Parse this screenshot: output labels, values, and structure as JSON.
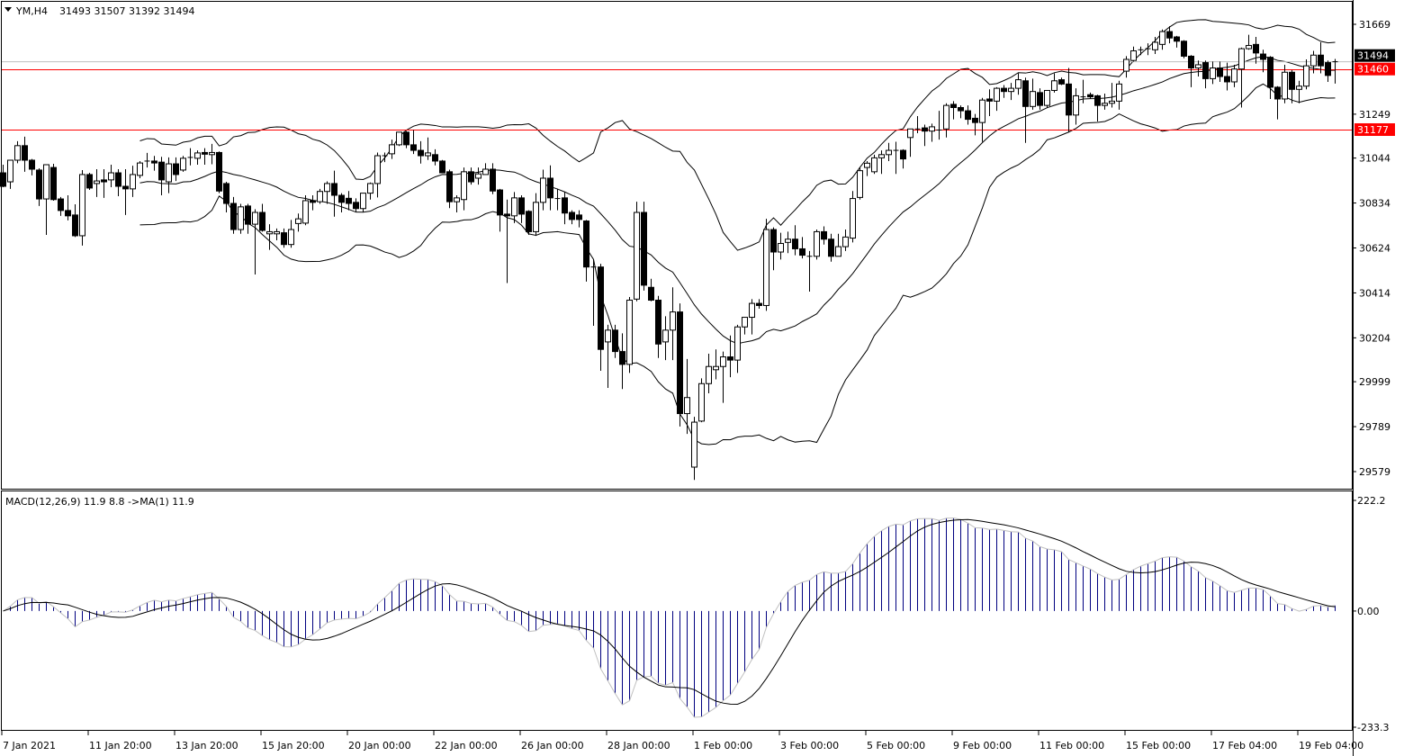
{
  "header": {
    "symbol": "YM,H4",
    "ohlc": "31493 31507 31392 31494",
    "menu_icon": "triangle-down-icon"
  },
  "macd_header": {
    "text": "MACD(12,26,9) 11.9 8.8  ->MA(1) 11.9"
  },
  "colors": {
    "background": "#ffffff",
    "candle_up": "#ffffff",
    "candle_down": "#000000",
    "hline": "#ff0000",
    "bid_line": "#c0c0c0",
    "macd_hist": "#000080",
    "macd_line": "#c0c0c0",
    "signal_line": "#000000"
  },
  "chart_data": [
    {
      "type": "candlestick",
      "title": "YM,H4",
      "ylim": [
        29579,
        31669
      ],
      "y_ticks": [
        "31669",
        "31249",
        "31044",
        "30834",
        "30624",
        "30414",
        "30204",
        "29999",
        "29789",
        "29579"
      ],
      "x_ticks": [
        "7 Jan 2021",
        "11 Jan 20:00",
        "13 Jan 20:00",
        "15 Jan 20:00",
        "20 Jan 00:00",
        "22 Jan 00:00",
        "26 Jan 00:00",
        "28 Jan 00:00",
        "1 Feb 00:00",
        "3 Feb 00:00",
        "5 Feb 00:00",
        "9 Feb 00:00",
        "11 Feb 00:00",
        "15 Feb 00:00",
        "17 Feb 04:00",
        "19 Feb 04:00"
      ],
      "x_tick_every_bars": 12,
      "bollinger": {
        "period": 20,
        "deviation": 2
      },
      "horizontal_lines": [
        {
          "price": 31460,
          "label": "31460",
          "color": "#ff0000"
        },
        {
          "price": 31177,
          "label": "31177",
          "color": "#ff0000"
        }
      ],
      "bid": {
        "price": 31494,
        "label": "31494"
      },
      "ohlc": [
        [
          30975,
          31013,
          30908,
          30912
        ],
        [
          30933,
          31034,
          30900,
          31034
        ],
        [
          31034,
          31123,
          31020,
          31102
        ],
        [
          31102,
          31144,
          30980,
          31034
        ],
        [
          31034,
          31040,
          30963,
          30992
        ],
        [
          30988,
          30996,
          30820,
          30853
        ],
        [
          30853,
          31013,
          30685,
          31013
        ],
        [
          31000,
          31017,
          30845,
          30850
        ],
        [
          30853,
          30862,
          30774,
          30799
        ],
        [
          30799,
          30870,
          30753,
          30774
        ],
        [
          30778,
          30828,
          30675,
          30681
        ],
        [
          30681,
          30988,
          30635,
          30967
        ],
        [
          30967,
          30975,
          30895,
          30904
        ],
        [
          30925,
          30992,
          30862,
          30937
        ],
        [
          30942,
          30992,
          30858,
          30933
        ],
        [
          30942,
          31013,
          30908,
          30975
        ],
        [
          30975,
          30992,
          30866,
          30912
        ],
        [
          30912,
          30992,
          30778,
          30900
        ],
        [
          30900,
          31008,
          30862,
          30967
        ],
        [
          30963,
          31030,
          30950,
          31021
        ],
        [
          31025,
          31068,
          31000,
          31030
        ],
        [
          31030,
          31054,
          30985,
          31021
        ],
        [
          31025,
          31050,
          30870,
          30942
        ],
        [
          30933,
          31047,
          30880,
          31017
        ],
        [
          31017,
          31047,
          30937,
          30967
        ],
        [
          30988,
          31054,
          30980,
          31043
        ],
        [
          31043,
          31090,
          31010,
          31047
        ],
        [
          31043,
          31080,
          31013,
          31068
        ],
        [
          31070,
          31090,
          31013,
          31062
        ],
        [
          31060,
          31110,
          31015,
          31070
        ],
        [
          31070,
          31075,
          30880,
          30890
        ],
        [
          30925,
          30933,
          30790,
          30832
        ],
        [
          30832,
          30862,
          30690,
          30710
        ],
        [
          30710,
          30830,
          30690,
          30816
        ],
        [
          30820,
          30830,
          30690,
          30735
        ],
        [
          30735,
          30805,
          30500,
          30790
        ],
        [
          30790,
          30830,
          30700,
          30706
        ],
        [
          30690,
          30735,
          30615,
          30700
        ],
        [
          30690,
          30715,
          30660,
          30700
        ],
        [
          30695,
          30715,
          30625,
          30640
        ],
        [
          30640,
          30755,
          30625,
          30710
        ],
        [
          30738,
          30785,
          30700,
          30760
        ],
        [
          30740,
          30870,
          30730,
          30845
        ],
        [
          30845,
          30870,
          30800,
          30837
        ],
        [
          30840,
          30900,
          30830,
          30888
        ],
        [
          30888,
          30935,
          30830,
          30925
        ],
        [
          30925,
          30985,
          30770,
          30870
        ],
        [
          30870,
          30880,
          30790,
          30837
        ],
        [
          30856,
          30890,
          30800,
          30832
        ],
        [
          30837,
          30856,
          30790,
          30808
        ],
        [
          30808,
          30880,
          30790,
          30880
        ],
        [
          30880,
          30930,
          30850,
          30925
        ],
        [
          30925,
          31070,
          30860,
          31055
        ],
        [
          31058,
          31070,
          31025,
          31055
        ],
        [
          31064,
          31130,
          31040,
          31106
        ],
        [
          31106,
          31165,
          31100,
          31165
        ],
        [
          31165,
          31170,
          31090,
          31106
        ],
        [
          31106,
          31175,
          31063,
          31080
        ],
        [
          31080,
          31123,
          31018,
          31055
        ],
        [
          31055,
          31140,
          31035,
          31068
        ],
        [
          31060,
          31085,
          31010,
          31030
        ],
        [
          31030,
          31035,
          30975,
          30975
        ],
        [
          30980,
          30990,
          30810,
          30840
        ],
        [
          30840,
          30870,
          30790,
          30858
        ],
        [
          30850,
          31000,
          30800,
          30980
        ],
        [
          30980,
          31000,
          30920,
          30933
        ],
        [
          30950,
          31000,
          30920,
          30970
        ],
        [
          30967,
          31020,
          30967,
          30992
        ],
        [
          30992,
          31020,
          30875,
          30890
        ],
        [
          30895,
          30900,
          30700,
          30778
        ],
        [
          30782,
          30850,
          30460,
          30774
        ],
        [
          30774,
          30885,
          30740,
          30858
        ],
        [
          30858,
          30870,
          30740,
          30782
        ],
        [
          30795,
          30800,
          30685,
          30700
        ],
        [
          30700,
          30880,
          30680,
          30837
        ],
        [
          30837,
          30990,
          30800,
          30950
        ],
        [
          30950,
          31010,
          30800,
          30858
        ],
        [
          30860,
          30900,
          30800,
          30855
        ],
        [
          30858,
          30885,
          30735,
          30787
        ],
        [
          30790,
          30800,
          30735,
          30757
        ],
        [
          30778,
          30800,
          30720,
          30757
        ],
        [
          30750,
          30755,
          30467,
          30535
        ],
        [
          30540,
          30570,
          30260,
          30535
        ],
        [
          30535,
          30550,
          30050,
          30150
        ],
        [
          30185,
          30265,
          29970,
          30240
        ],
        [
          30240,
          30265,
          30110,
          30140
        ],
        [
          30140,
          30225,
          29965,
          30080
        ],
        [
          30080,
          30395,
          30040,
          30380
        ],
        [
          30385,
          30840,
          30375,
          30790
        ],
        [
          30790,
          30840,
          30425,
          30450
        ],
        [
          30440,
          30480,
          30375,
          30380
        ],
        [
          30380,
          30400,
          30110,
          30175
        ],
        [
          30185,
          30305,
          30100,
          30240
        ],
        [
          30240,
          30440,
          30100,
          30325
        ],
        [
          30325,
          30365,
          29790,
          29850
        ],
        [
          29850,
          30105,
          29755,
          29925
        ],
        [
          29600,
          29835,
          29540,
          29810
        ],
        [
          29815,
          30015,
          29810,
          29990
        ],
        [
          29990,
          30130,
          29945,
          30070
        ],
        [
          30055,
          30150,
          30010,
          30070
        ],
        [
          30070,
          30140,
          29900,
          30115
        ],
        [
          30115,
          30215,
          30020,
          30100
        ],
        [
          30100,
          30265,
          30040,
          30255
        ],
        [
          30255,
          30300,
          30220,
          30300
        ],
        [
          30300,
          30385,
          30220,
          30365
        ],
        [
          30365,
          30385,
          30340,
          30355
        ],
        [
          30355,
          30760,
          30330,
          30710
        ],
        [
          30710,
          30720,
          30520,
          30605
        ],
        [
          30605,
          30695,
          30570,
          30645
        ],
        [
          30650,
          30700,
          30600,
          30665
        ],
        [
          30665,
          30730,
          30590,
          30620
        ],
        [
          30620,
          30675,
          30575,
          30590
        ],
        [
          30590,
          30610,
          30420,
          30585
        ],
        [
          30585,
          30710,
          30570,
          30700
        ],
        [
          30700,
          30725,
          30640,
          30665
        ],
        [
          30665,
          30690,
          30560,
          30585
        ],
        [
          30585,
          30690,
          30600,
          30630
        ],
        [
          30630,
          30710,
          30610,
          30675
        ],
        [
          30670,
          30890,
          30650,
          30855
        ],
        [
          30860,
          31000,
          30850,
          30985
        ],
        [
          31000,
          31030,
          30960,
          31020
        ],
        [
          30980,
          31060,
          30970,
          31045
        ],
        [
          31045,
          31080,
          30970,
          31060
        ],
        [
          31060,
          31115,
          31030,
          31080
        ],
        [
          31085,
          31120,
          30970,
          31080
        ],
        [
          31080,
          31085,
          30995,
          31040
        ],
        [
          31140,
          31180,
          31050,
          31180
        ],
        [
          31177,
          31240,
          31160,
          31180
        ],
        [
          31185,
          31200,
          31100,
          31170
        ],
        [
          31170,
          31205,
          31120,
          31190
        ],
        [
          31180,
          31265,
          31130,
          31175
        ],
        [
          31180,
          31300,
          31140,
          31290
        ],
        [
          31295,
          31310,
          31225,
          31280
        ],
        [
          31280,
          31290,
          31230,
          31265
        ],
        [
          31265,
          31290,
          31200,
          31225
        ],
        [
          31230,
          31250,
          31150,
          31210
        ],
        [
          31210,
          31325,
          31120,
          31315
        ],
        [
          31320,
          31365,
          31240,
          31310
        ],
        [
          31310,
          31375,
          31265,
          31370
        ],
        [
          31370,
          31385,
          31325,
          31355
        ],
        [
          31355,
          31395,
          31315,
          31370
        ],
        [
          31370,
          31440,
          31340,
          31410
        ],
        [
          31405,
          31420,
          31115,
          31285
        ],
        [
          31285,
          31415,
          31270,
          31355
        ],
        [
          31350,
          31370,
          31270,
          31290
        ],
        [
          31290,
          31360,
          31280,
          31360
        ],
        [
          31360,
          31440,
          31350,
          31405
        ],
        [
          31410,
          31420,
          31385,
          31390
        ],
        [
          31390,
          31465,
          31165,
          31245
        ],
        [
          31245,
          31370,
          31200,
          31335
        ],
        [
          31335,
          31410,
          31300,
          31330
        ],
        [
          31340,
          31350,
          31320,
          31330
        ],
        [
          31335,
          31340,
          31215,
          31290
        ],
        [
          31290,
          31345,
          31270,
          31300
        ],
        [
          31300,
          31395,
          31280,
          31310
        ],
        [
          31310,
          31405,
          31270,
          31390
        ],
        [
          31450,
          31520,
          31420,
          31505
        ],
        [
          31500,
          31565,
          31495,
          31545
        ],
        [
          31545,
          31565,
          31525,
          31550
        ],
        [
          31550,
          31580,
          31525,
          31555
        ],
        [
          31550,
          31610,
          31530,
          31585
        ],
        [
          31575,
          31645,
          31550,
          31635
        ],
        [
          31635,
          31660,
          31580,
          31605
        ],
        [
          31610,
          31615,
          31560,
          31590
        ],
        [
          31590,
          31595,
          31510,
          31520
        ],
        [
          31520,
          31525,
          31375,
          31465
        ],
        [
          31465,
          31500,
          31425,
          31480
        ],
        [
          31490,
          31500,
          31370,
          31415
        ],
        [
          31415,
          31495,
          31390,
          31465
        ],
        [
          31465,
          31495,
          31400,
          31425
        ],
        [
          31425,
          31490,
          31360,
          31400
        ],
        [
          31400,
          31480,
          31375,
          31460
        ],
        [
          31460,
          31560,
          31280,
          31555
        ],
        [
          31555,
          31620,
          31550,
          31570
        ],
        [
          31575,
          31610,
          31485,
          31535
        ],
        [
          31530,
          31550,
          31445,
          31505
        ],
        [
          31515,
          31520,
          31320,
          31375
        ],
        [
          31375,
          31380,
          31225,
          31320
        ],
        [
          31320,
          31480,
          31300,
          31445
        ],
        [
          31445,
          31455,
          31300,
          31365
        ],
        [
          31365,
          31405,
          31300,
          31380
        ],
        [
          31380,
          31505,
          31365,
          31475
        ],
        [
          31475,
          31545,
          31440,
          31525
        ],
        [
          31525,
          31585,
          31440,
          31475
        ],
        [
          31490,
          31500,
          31400,
          31430
        ],
        [
          31493,
          31507,
          31392,
          31494
        ]
      ]
    },
    {
      "type": "macd",
      "title": "MACD(12,26,9)",
      "params": {
        "fast": 12,
        "slow": 26,
        "signal": 9
      },
      "values_shown": {
        "macd": "11.9",
        "signal": "8.8",
        "ma1": "11.9"
      },
      "ylim": [
        -233.3,
        222.2
      ],
      "y_ticks": [
        "222.2",
        "0.00",
        "-233.3"
      ]
    }
  ]
}
